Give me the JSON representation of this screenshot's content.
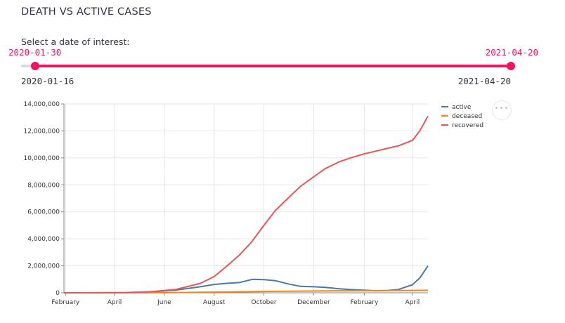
{
  "page": {
    "title": "DEATH VS ACTIVE CASES"
  },
  "slider": {
    "label": "Select a date of interest:",
    "selected_start": "2020-01-30",
    "selected_end": "2021-04-20",
    "min": "2020-01-16",
    "max": "2021-04-20",
    "color": "#f0145a"
  },
  "menu": {
    "icon": "ellipsis-icon",
    "glyph": "•••"
  },
  "chart_data": {
    "type": "line",
    "title": "",
    "xlabel": "",
    "ylabel": "",
    "xlim": [
      "2020-01-30",
      "2021-04-20"
    ],
    "ylim": [
      0,
      14000000
    ],
    "yticks": [
      0,
      2000000,
      4000000,
      6000000,
      8000000,
      10000000,
      12000000,
      14000000
    ],
    "ytick_labels": [
      "0",
      "2,000,000",
      "4,000,000",
      "6,000,000",
      "8,000,000",
      "10,000,000",
      "12,000,000",
      "14,000,000"
    ],
    "xticks": [
      "2020-02-01",
      "2020-04-01",
      "2020-06-01",
      "2020-08-01",
      "2020-10-01",
      "2020-12-01",
      "2021-02-01",
      "2021-04-01"
    ],
    "xtick_labels": [
      "February",
      "April",
      "June",
      "August",
      "October",
      "December",
      "February",
      "April"
    ],
    "grid": true,
    "legend_position": "right",
    "series": [
      {
        "name": "active",
        "color": "#4c78a8",
        "points": [
          [
            "2020-01-30",
            0
          ],
          [
            "2020-03-15",
            0
          ],
          [
            "2020-04-15",
            10000
          ],
          [
            "2020-05-15",
            60000
          ],
          [
            "2020-06-15",
            200000
          ],
          [
            "2020-07-15",
            450000
          ],
          [
            "2020-08-01",
            620000
          ],
          [
            "2020-08-15",
            700000
          ],
          [
            "2020-09-01",
            760000
          ],
          [
            "2020-09-17",
            1000000
          ],
          [
            "2020-10-01",
            980000
          ],
          [
            "2020-10-15",
            900000
          ],
          [
            "2020-11-01",
            640000
          ],
          [
            "2020-11-15",
            480000
          ],
          [
            "2020-12-01",
            450000
          ],
          [
            "2020-12-15",
            400000
          ],
          [
            "2021-01-01",
            300000
          ],
          [
            "2021-01-15",
            240000
          ],
          [
            "2021-02-01",
            190000
          ],
          [
            "2021-02-15",
            150000
          ],
          [
            "2021-03-01",
            170000
          ],
          [
            "2021-03-15",
            250000
          ],
          [
            "2021-04-01",
            600000
          ],
          [
            "2021-04-10",
            1100000
          ],
          [
            "2021-04-20",
            2000000
          ]
        ]
      },
      {
        "name": "deceased",
        "color": "#f58518",
        "points": [
          [
            "2020-01-30",
            0
          ],
          [
            "2020-06-01",
            5000
          ],
          [
            "2020-10-01",
            100000
          ],
          [
            "2021-01-01",
            150000
          ],
          [
            "2021-04-20",
            180000
          ]
        ]
      },
      {
        "name": "recovered",
        "color": "#e45756",
        "points": [
          [
            "2020-01-30",
            0
          ],
          [
            "2020-04-15",
            20000
          ],
          [
            "2020-05-15",
            80000
          ],
          [
            "2020-06-15",
            250000
          ],
          [
            "2020-07-15",
            700000
          ],
          [
            "2020-08-01",
            1200000
          ],
          [
            "2020-08-15",
            1900000
          ],
          [
            "2020-09-01",
            2800000
          ],
          [
            "2020-09-15",
            3700000
          ],
          [
            "2020-10-01",
            5000000
          ],
          [
            "2020-10-15",
            6100000
          ],
          [
            "2020-11-01",
            7100000
          ],
          [
            "2020-11-15",
            7900000
          ],
          [
            "2020-12-01",
            8600000
          ],
          [
            "2020-12-15",
            9200000
          ],
          [
            "2021-01-01",
            9700000
          ],
          [
            "2021-01-15",
            10000000
          ],
          [
            "2021-02-01",
            10300000
          ],
          [
            "2021-02-15",
            10500000
          ],
          [
            "2021-03-01",
            10700000
          ],
          [
            "2021-03-15",
            10900000
          ],
          [
            "2021-04-01",
            11300000
          ],
          [
            "2021-04-10",
            12000000
          ],
          [
            "2021-04-20",
            13100000
          ]
        ]
      }
    ]
  }
}
